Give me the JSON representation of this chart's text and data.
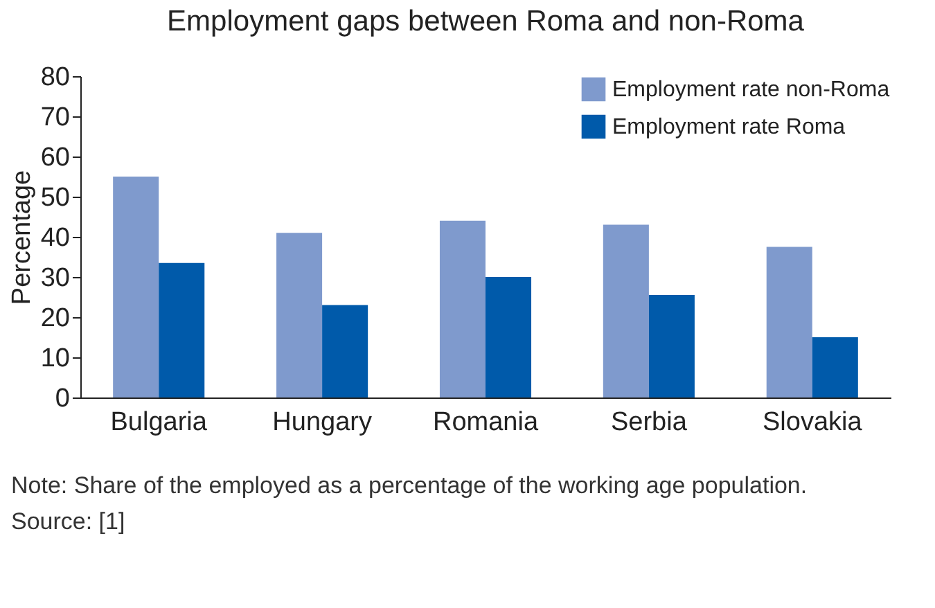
{
  "chart_data": {
    "type": "bar",
    "title": "Employment gaps between Roma and non-Roma",
    "ylabel": "Percentage",
    "categories": [
      "Bulgaria",
      "Hungary",
      "Romania",
      "Serbia",
      "Slovakia"
    ],
    "series": [
      {
        "name": "Employment rate non-Roma",
        "color": "#7f9acd",
        "values": [
          55,
          41,
          44,
          43,
          37.5
        ]
      },
      {
        "name": "Employment rate Roma",
        "color": "#005aaa",
        "values": [
          33.5,
          23,
          30,
          25.5,
          15
        ]
      }
    ],
    "ylim": [
      0,
      80
    ],
    "yticks": [
      0,
      10,
      20,
      30,
      40,
      50,
      60,
      70,
      80
    ],
    "grid": false,
    "legend": "top right",
    "annotations": [
      "Note: Share of the employed as a percentage of the working age population.",
      "Source: [1]"
    ]
  }
}
